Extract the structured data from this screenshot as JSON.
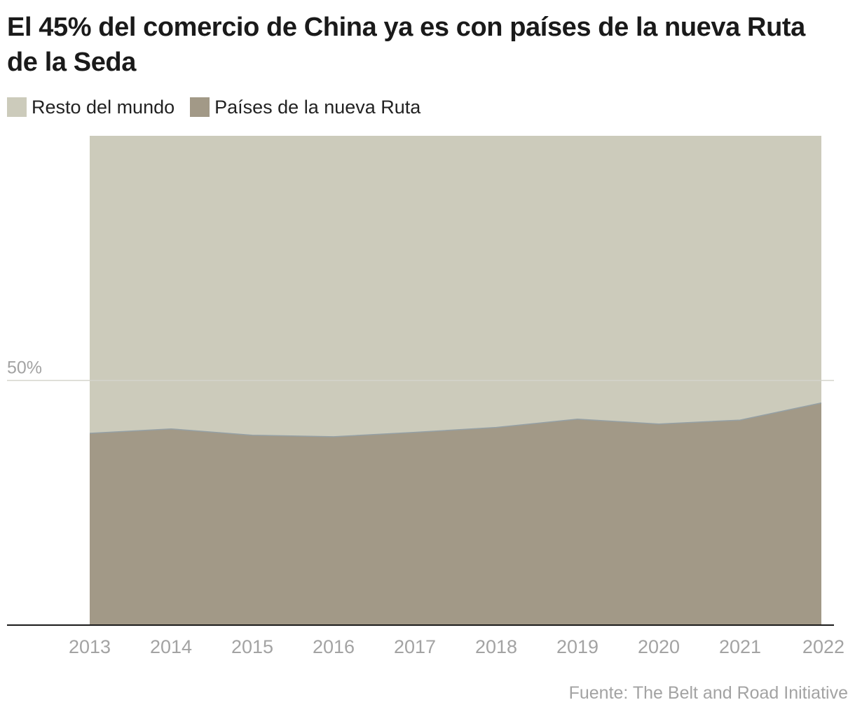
{
  "title": "El 45% del comercio de China ya es con países de la nueva Ruta de la Seda",
  "source": "Fuente: The Belt and Road Initiative",
  "colors": {
    "rest": "#cccbbb",
    "route": "#a29987",
    "route_line": "#95a0a4",
    "grid": "#d4d4cc",
    "axis": "#1a1a1a",
    "tick_text": "#a3a3a3"
  },
  "legend": [
    {
      "label": "Resto del mundo",
      "color": "#cccbbb"
    },
    {
      "label": "Países de la nueva Ruta",
      "color": "#a29987"
    }
  ],
  "chart_data": {
    "type": "area",
    "stacked": true,
    "categories": [
      "2013",
      "2014",
      "2015",
      "2016",
      "2017",
      "2018",
      "2019",
      "2020",
      "2021",
      "2022"
    ],
    "series": [
      {
        "name": "Países de la nueva Ruta",
        "values": [
          39.2,
          40.1,
          38.8,
          38.5,
          39.4,
          40.4,
          42.1,
          41.1,
          41.9,
          45.4
        ]
      },
      {
        "name": "Resto del mundo",
        "values": [
          60.8,
          59.9,
          61.2,
          61.5,
          60.6,
          59.6,
          57.9,
          58.9,
          58.1,
          54.6
        ]
      }
    ],
    "ylim": [
      0,
      100
    ],
    "yticks": [
      {
        "value": 50,
        "label": "50%"
      }
    ],
    "grid": true
  }
}
